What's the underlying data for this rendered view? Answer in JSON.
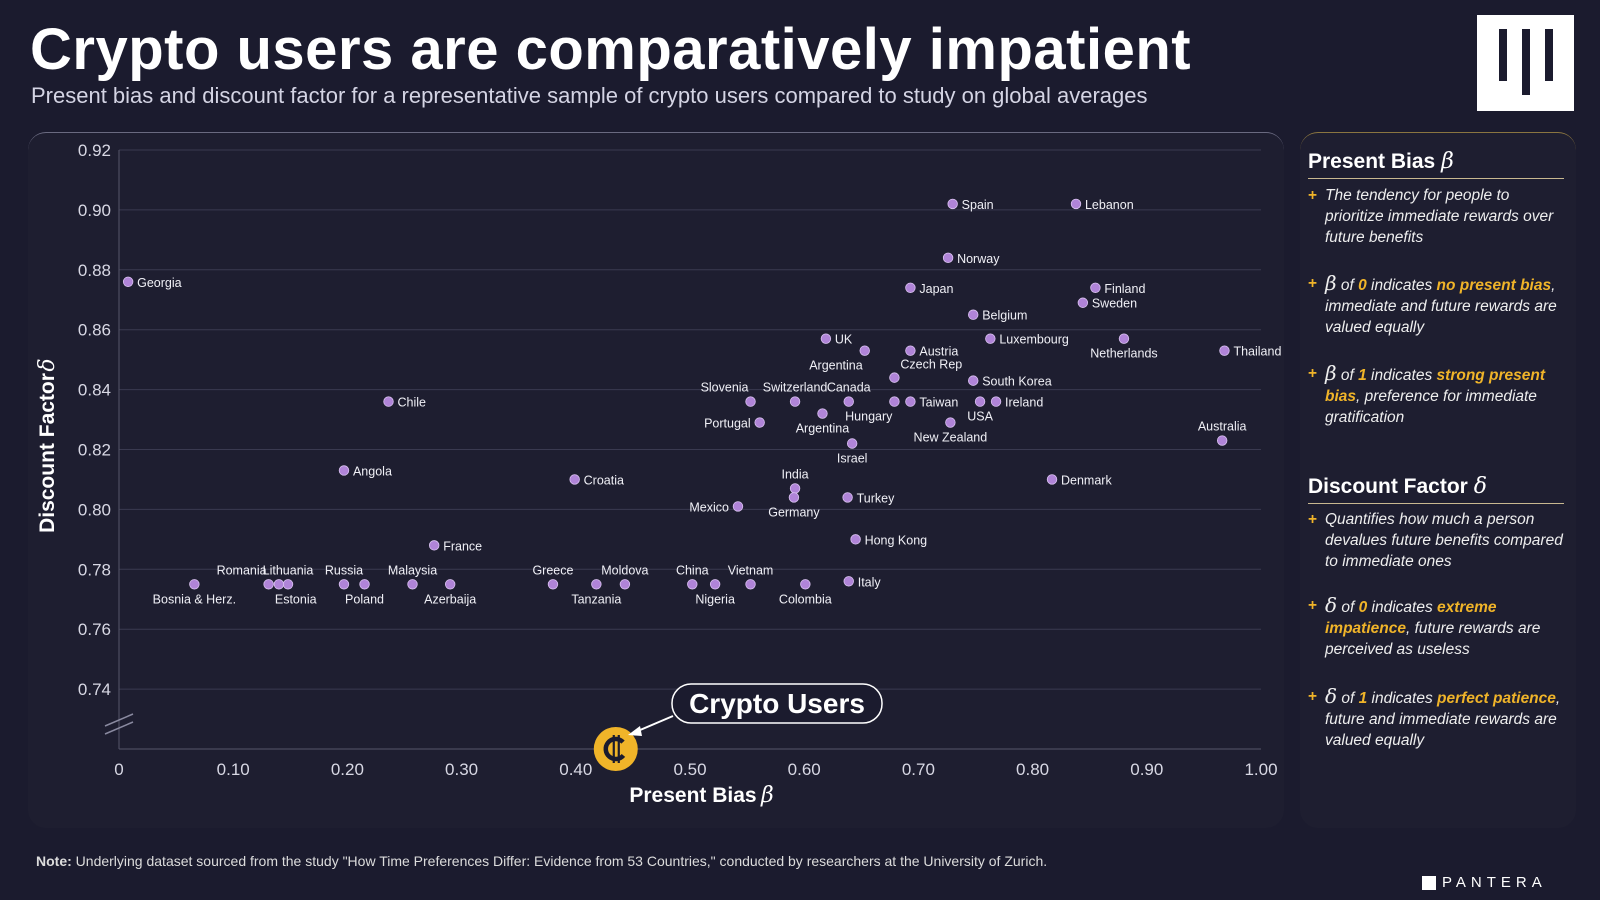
{
  "title": "Crypto users are comparatively impatient",
  "subtitle": "Present bias and discount factor for a representative sample of crypto users compared to study on global averages",
  "brand": "PANTERA",
  "note": {
    "label": "Note:",
    "text": "Underlying dataset sourced from the study \"How Time Preferences Differ: Evidence from 53 Countries,\" conducted by researchers at the University of Zurich."
  },
  "sidebar": {
    "present_bias": {
      "title": "Present Bias",
      "symbol": "β",
      "bullets": [
        {
          "pre": "The tendency for people to prioritize immediate rewards over future benefits"
        },
        {
          "sym": "β",
          "pre": " of ",
          "num": "0",
          "mid": " indicates ",
          "hl": "no present bias",
          "post": ", immediate and future rewards are valued equally"
        },
        {
          "sym": "β",
          "pre": " of ",
          "num": "1",
          "mid": " indicates ",
          "hl": "strong present bias",
          "post": ", preference for immediate gratification"
        }
      ]
    },
    "discount_factor": {
      "title": "Discount Factor",
      "symbol": "δ",
      "bullets": [
        {
          "pre": "Quantifies how much a person devalues future benefits compared to immediate ones"
        },
        {
          "sym": "δ",
          "pre": " of ",
          "num": "0",
          "mid": " indicates ",
          "hl": "extreme impatience",
          "post": ", future rewards are perceived as useless"
        },
        {
          "sym": "δ",
          "pre": " of ",
          "num": "1",
          "mid": " indicates ",
          "hl": "perfect patience",
          "post": ", future and immediate rewards are valued equally"
        }
      ]
    }
  },
  "colors": {
    "point": "#b084d8",
    "accent": "#f0b429",
    "grid": "#3a3a50",
    "background": "#1b1b2e"
  },
  "chart_data": {
    "type": "scatter",
    "xlabel": "Present Bias",
    "xlabel_symbol": "β",
    "ylabel": "Discount Factor",
    "ylabel_symbol": "δ",
    "xlim": [
      0,
      1.0
    ],
    "ylim": [
      0.72,
      0.92
    ],
    "axis_break": true,
    "grid": true,
    "xticks": [
      "0",
      "0.10",
      "0.20",
      "0.30",
      "0.40",
      "0.50",
      "0.60",
      "0.70",
      "0.80",
      "0.90",
      "1.00"
    ],
    "xtick_values": [
      0,
      0.1,
      0.2,
      0.3,
      0.4,
      0.5,
      0.6,
      0.7,
      0.8,
      0.9,
      1.0
    ],
    "yticks": [
      "0.92",
      "0.90",
      "0.88",
      "0.86",
      "0.84",
      "0.82",
      "0.80",
      "0.78",
      "0.76",
      "0.74"
    ],
    "ytick_values": [
      0.92,
      0.9,
      0.88,
      0.86,
      0.84,
      0.82,
      0.8,
      0.78,
      0.76,
      0.74
    ],
    "points": [
      {
        "label": "Spain",
        "x": 0.73,
        "y": 0.902,
        "pos": "right"
      },
      {
        "label": "Lebanon",
        "x": 0.838,
        "y": 0.902,
        "pos": "right"
      },
      {
        "label": "Norway",
        "x": 0.726,
        "y": 0.884,
        "pos": "right"
      },
      {
        "label": "Georgia",
        "x": 0.008,
        "y": 0.876,
        "pos": "right"
      },
      {
        "label": "Japan",
        "x": 0.693,
        "y": 0.874,
        "pos": "right"
      },
      {
        "label": "Finland",
        "x": 0.855,
        "y": 0.874,
        "pos": "right"
      },
      {
        "label": "Sweden",
        "x": 0.844,
        "y": 0.869,
        "pos": "right"
      },
      {
        "label": "Belgium",
        "x": 0.748,
        "y": 0.865,
        "pos": "right"
      },
      {
        "label": "UK",
        "x": 0.619,
        "y": 0.857,
        "pos": "right"
      },
      {
        "label": "Luxembourg",
        "x": 0.763,
        "y": 0.857,
        "pos": "right"
      },
      {
        "label": "Netherlands",
        "x": 0.88,
        "y": 0.857,
        "pos": "below"
      },
      {
        "label": "Argentina",
        "x": 0.653,
        "y": 0.853,
        "pos": "belowleft"
      },
      {
        "label": "Austria",
        "x": 0.693,
        "y": 0.853,
        "pos": "right"
      },
      {
        "label": "Thailand",
        "x": 0.968,
        "y": 0.853,
        "pos": "right"
      },
      {
        "label": "Czech Rep",
        "x": 0.679,
        "y": 0.844,
        "pos": "upright"
      },
      {
        "label": "South Korea",
        "x": 0.748,
        "y": 0.843,
        "pos": "right"
      },
      {
        "label": "Slovenia",
        "x": 0.553,
        "y": 0.836,
        "pos": "upleft"
      },
      {
        "label": "Switzerland",
        "x": 0.592,
        "y": 0.836,
        "pos": "above"
      },
      {
        "label": "Canada",
        "x": 0.639,
        "y": 0.836,
        "pos": "above"
      },
      {
        "label": "Chile",
        "x": 0.236,
        "y": 0.836,
        "pos": "right"
      },
      {
        "label": "Taiwan",
        "x": 0.693,
        "y": 0.836,
        "pos": "right"
      },
      {
        "label": "Ireland",
        "x": 0.768,
        "y": 0.836,
        "pos": "right"
      },
      {
        "label": "Hungary",
        "x": 0.679,
        "y": 0.836,
        "pos": "belowleft"
      },
      {
        "label": "Argentina",
        "x": 0.616,
        "y": 0.832,
        "pos": "below"
      },
      {
        "label": "USA",
        "x": 0.754,
        "y": 0.836,
        "pos": "below"
      },
      {
        "label": "Portugal",
        "x": 0.561,
        "y": 0.829,
        "pos": "left"
      },
      {
        "label": "New Zealand",
        "x": 0.728,
        "y": 0.829,
        "pos": "below"
      },
      {
        "label": "Australia",
        "x": 0.966,
        "y": 0.823,
        "pos": "above"
      },
      {
        "label": "Israel",
        "x": 0.642,
        "y": 0.822,
        "pos": "below"
      },
      {
        "label": "Angola",
        "x": 0.197,
        "y": 0.813,
        "pos": "right"
      },
      {
        "label": "Croatia",
        "x": 0.399,
        "y": 0.81,
        "pos": "right"
      },
      {
        "label": "Denmark",
        "x": 0.817,
        "y": 0.81,
        "pos": "right"
      },
      {
        "label": "India",
        "x": 0.592,
        "y": 0.807,
        "pos": "above"
      },
      {
        "label": "Turkey",
        "x": 0.638,
        "y": 0.804,
        "pos": "right"
      },
      {
        "label": "Germany",
        "x": 0.591,
        "y": 0.804,
        "pos": "below"
      },
      {
        "label": "Mexico",
        "x": 0.542,
        "y": 0.801,
        "pos": "left"
      },
      {
        "label": "France",
        "x": 0.276,
        "y": 0.788,
        "pos": "right"
      },
      {
        "label": "Hong Kong",
        "x": 0.645,
        "y": 0.79,
        "pos": "right"
      },
      {
        "label": "Italy",
        "x": 0.639,
        "y": 0.776,
        "pos": "right"
      },
      {
        "label": "Bosnia & Herz.",
        "x": 0.066,
        "y": 0.775,
        "pos": "below"
      },
      {
        "label": "Romania",
        "x": 0.131,
        "y": 0.775,
        "pos": "upleft"
      },
      {
        "label": "Lithuania",
        "x": 0.148,
        "y": 0.775,
        "pos": "above"
      },
      {
        "label": "Estonia",
        "x": 0.14,
        "y": 0.775,
        "pos": "belowright"
      },
      {
        "label": "Russia",
        "x": 0.197,
        "y": 0.775,
        "pos": "above"
      },
      {
        "label": "Poland",
        "x": 0.215,
        "y": 0.775,
        "pos": "below"
      },
      {
        "label": "Malaysia",
        "x": 0.257,
        "y": 0.775,
        "pos": "above"
      },
      {
        "label": "Azerbaija",
        "x": 0.29,
        "y": 0.775,
        "pos": "below"
      },
      {
        "label": "Greece",
        "x": 0.38,
        "y": 0.775,
        "pos": "above"
      },
      {
        "label": "Tanzania",
        "x": 0.418,
        "y": 0.775,
        "pos": "below"
      },
      {
        "label": "Moldova",
        "x": 0.443,
        "y": 0.775,
        "pos": "above"
      },
      {
        "label": "China",
        "x": 0.502,
        "y": 0.775,
        "pos": "above"
      },
      {
        "label": "Nigeria",
        "x": 0.522,
        "y": 0.775,
        "pos": "below"
      },
      {
        "label": "Vietnam",
        "x": 0.553,
        "y": 0.775,
        "pos": "above"
      },
      {
        "label": "Colombia",
        "x": 0.601,
        "y": 0.775,
        "pos": "below"
      }
    ],
    "highlight": {
      "label": "Crypto Users",
      "x": 0.435,
      "y": 0.72
    }
  }
}
